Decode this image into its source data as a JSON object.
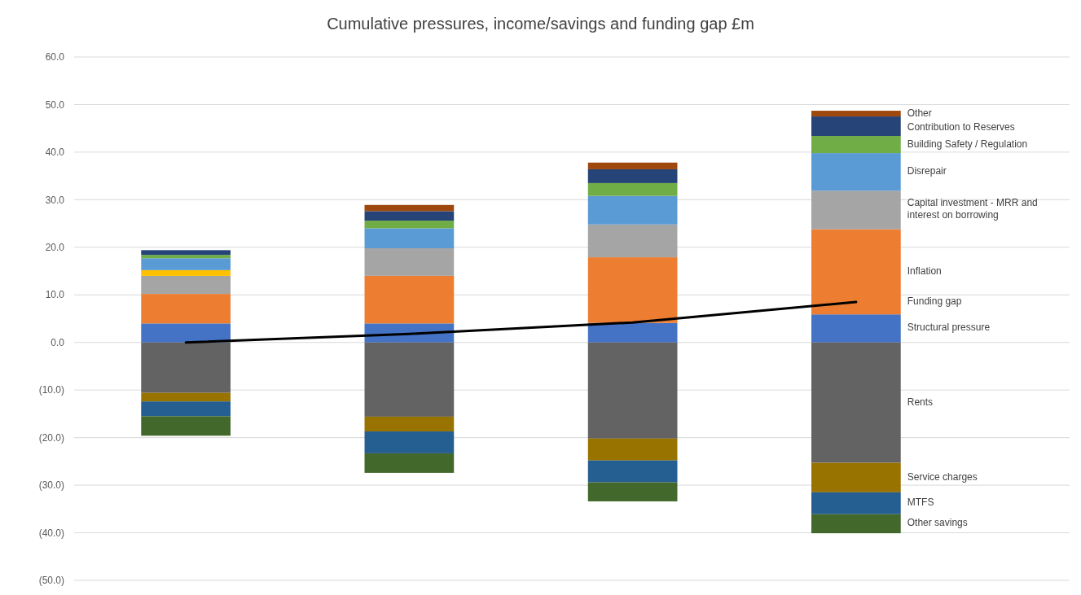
{
  "chart_data": {
    "type": "bar",
    "title": "Cumulative pressures, income/savings and funding gap £m",
    "categories": [
      null,
      null,
      null,
      null
    ],
    "stacked": true,
    "grid": "y",
    "ylim": [
      -50,
      60
    ],
    "yticks": [
      {
        "value": -50,
        "label": "(50.0)"
      },
      {
        "value": -40,
        "label": "(40.0)"
      },
      {
        "value": -30,
        "label": "(30.0)"
      },
      {
        "value": -20,
        "label": "(20.0)"
      },
      {
        "value": -10,
        "label": "(10.0)"
      },
      {
        "value": 0,
        "label": "0.0"
      },
      {
        "value": 10,
        "label": "10.0"
      },
      {
        "value": 20,
        "label": "20.0"
      },
      {
        "value": 30,
        "label": "30.0"
      },
      {
        "value": 40,
        "label": "40.0"
      },
      {
        "value": 50,
        "label": "50.0"
      },
      {
        "value": 60,
        "label": "60.0"
      }
    ],
    "series": [
      {
        "name": "Structural pressure",
        "color": "#4472c4",
        "values": [
          4.0,
          4.0,
          4.1,
          5.9
        ]
      },
      {
        "name": "Inflation",
        "color": "#ed7d31",
        "values": [
          6.2,
          10.0,
          13.8,
          17.9
        ]
      },
      {
        "name": "Capital investment - MRR and interest on borrowing",
        "color": "#a5a5a5",
        "values": [
          3.8,
          5.8,
          6.9,
          8.1
        ]
      },
      {
        "color": "#ffc000",
        "values": [
          1.2,
          0,
          0,
          0
        ]
      },
      {
        "name": "Disrepair",
        "color": "#5b9bd5",
        "values": [
          2.5,
          4.2,
          6.0,
          7.9
        ]
      },
      {
        "name": "Building Safety / Regulation",
        "color": "#70ad47",
        "values": [
          0.7,
          1.6,
          2.7,
          3.6
        ]
      },
      {
        "name": "Contribution to Reserves",
        "color": "#264478",
        "values": [
          1.0,
          2.0,
          2.9,
          4.1
        ]
      },
      {
        "name": "Other",
        "color": "#9e480e",
        "values": [
          0,
          1.3,
          1.4,
          1.2
        ]
      },
      {
        "name": "Rents",
        "color": "#636363",
        "values": [
          -10.6,
          -15.6,
          -20.2,
          -25.3
        ]
      },
      {
        "name": "Service charges",
        "color": "#997300",
        "values": [
          -1.8,
          -3.1,
          -4.6,
          -6.2
        ]
      },
      {
        "name": "MTFS",
        "color": "#255e91",
        "values": [
          -3.1,
          -4.6,
          -4.6,
          -4.6
        ]
      },
      {
        "name": "Other savings",
        "color": "#43682b",
        "values": [
          -4.1,
          -4.1,
          -4.0,
          -4.0
        ]
      },
      {
        "name": "Funding gap",
        "type": "line",
        "color": "#000000",
        "values": [
          0.0,
          1.8,
          4.2,
          8.5
        ]
      }
    ]
  }
}
